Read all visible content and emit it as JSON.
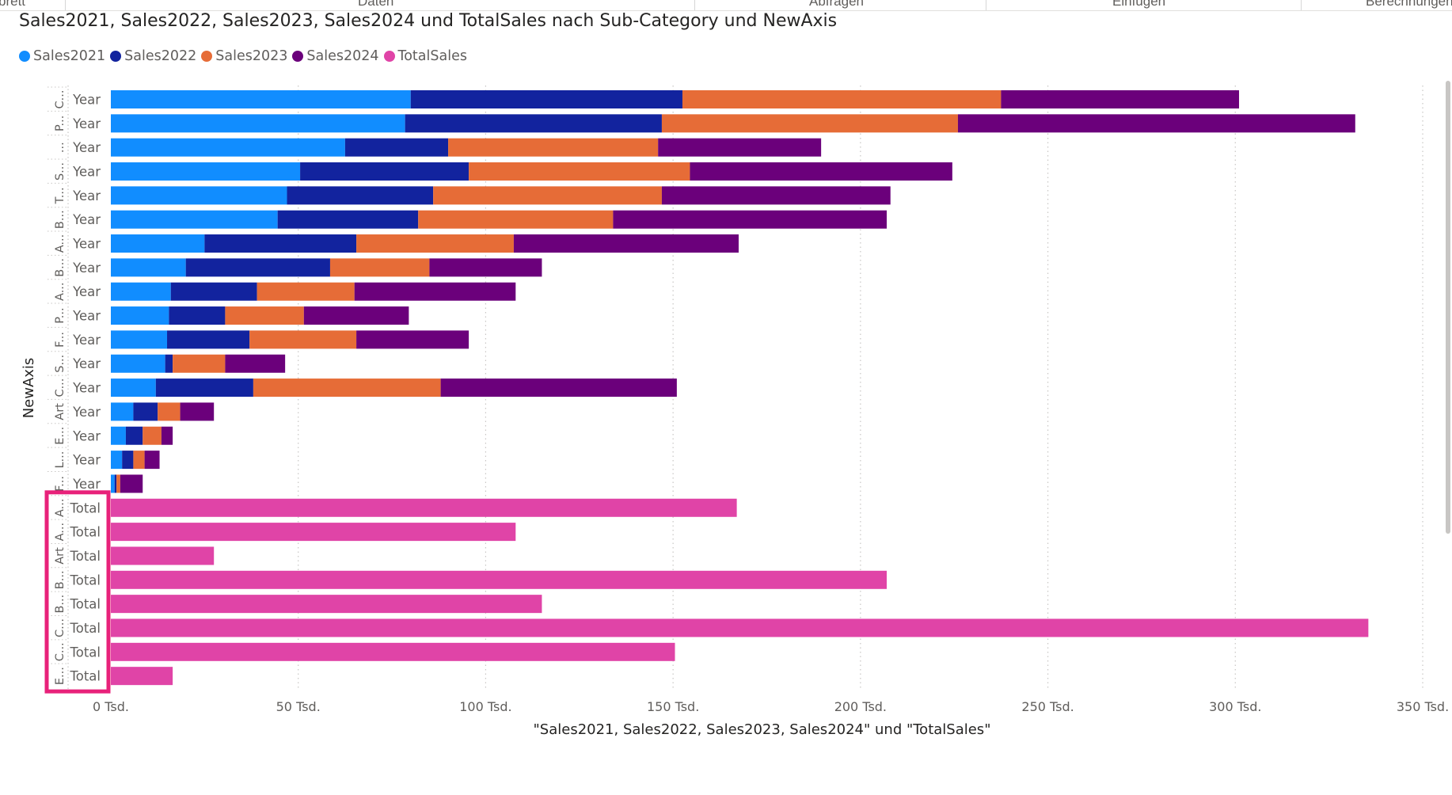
{
  "ribbon": {
    "items": [
      {
        "label": "brett"
      },
      {
        "label": "Daten"
      },
      {
        "label": "Abfragen"
      },
      {
        "label": "Einfügen"
      },
      {
        "label": "Berechnungen"
      }
    ]
  },
  "colors": {
    "Sales2021": "#118dff",
    "Sales2022": "#12239e",
    "Sales2023": "#e66c37",
    "Sales2024": "#6b007b",
    "TotalSales": "#e044a7",
    "highlight": "#e8217a"
  },
  "legend": {
    "items": [
      {
        "label": "Sales2021",
        "color": "#118dff"
      },
      {
        "label": "Sales2022",
        "color": "#12239e"
      },
      {
        "label": "Sales2023",
        "color": "#e66c37"
      },
      {
        "label": "Sales2024",
        "color": "#6b007b"
      },
      {
        "label": "TotalSales",
        "color": "#e044a7"
      }
    ]
  },
  "chart_data": {
    "type": "bar",
    "orientation": "horizontal",
    "stacked": true,
    "title": "Sales2021, Sales2022, Sales2023, Sales2024 und TotalSales nach Sub-Category und NewAxis",
    "xlabel": "\"Sales2021, Sales2022, Sales2023, Sales2024\" und \"TotalSales\"",
    "ylabel": "NewAxis",
    "xlim": [
      0,
      350
    ],
    "x_ticks": [
      "0 Tsd.",
      "50 Tsd.",
      "100 Tsd.",
      "150 Tsd.",
      "200 Tsd.",
      "250 Tsd.",
      "300 Tsd.",
      "350 Tsd."
    ],
    "grid": "vertical dotted",
    "legend_position": "top-left",
    "rows": [
      {
        "category": "C...",
        "axis": "Year",
        "values": [
          80,
          72.5,
          85,
          63.5,
          0
        ]
      },
      {
        "category": "P...",
        "axis": "Year",
        "values": [
          78.5,
          68.5,
          79,
          106,
          0
        ]
      },
      {
        "category": "...",
        "axis": "Year",
        "values": [
          62.5,
          27.5,
          56,
          43.5,
          0
        ]
      },
      {
        "category": "S...",
        "axis": "Year",
        "values": [
          50.5,
          45,
          59,
          70,
          0
        ]
      },
      {
        "category": "T...",
        "axis": "Year",
        "values": [
          47,
          39,
          61,
          61,
          0
        ]
      },
      {
        "category": "B...",
        "axis": "Year",
        "values": [
          44.5,
          37.5,
          52,
          73,
          0
        ]
      },
      {
        "category": "A...",
        "axis": "Year",
        "values": [
          25,
          40.5,
          42,
          60,
          0
        ]
      },
      {
        "category": "B...",
        "axis": "Year",
        "values": [
          20,
          38.5,
          26.5,
          30,
          0
        ]
      },
      {
        "category": "A...",
        "axis": "Year",
        "values": [
          16,
          23,
          26,
          43,
          0
        ]
      },
      {
        "category": "P...",
        "axis": "Year",
        "values": [
          15.5,
          15,
          21,
          28,
          0
        ]
      },
      {
        "category": "F...",
        "axis": "Year",
        "values": [
          15,
          22,
          28.5,
          30,
          0
        ]
      },
      {
        "category": "S...",
        "axis": "Year",
        "values": [
          14.5,
          2,
          14,
          16,
          0
        ]
      },
      {
        "category": "C...",
        "axis": "Year",
        "values": [
          12,
          26,
          50,
          63,
          0
        ]
      },
      {
        "category": "Art",
        "axis": "Year",
        "values": [
          6,
          6.5,
          6,
          9,
          0
        ]
      },
      {
        "category": "E...",
        "axis": "Year",
        "values": [
          4,
          4.5,
          5,
          3,
          0
        ]
      },
      {
        "category": "L...",
        "axis": "Year",
        "values": [
          3,
          3,
          3,
          4,
          0
        ]
      },
      {
        "category": "F...",
        "axis": "Year",
        "values": [
          1,
          0.5,
          1,
          6,
          0
        ]
      },
      {
        "category": "A...",
        "axis": "Total",
        "values": [
          0,
          0,
          0,
          0,
          167
        ]
      },
      {
        "category": "A...",
        "axis": "Total",
        "values": [
          0,
          0,
          0,
          0,
          108
        ]
      },
      {
        "category": "Art",
        "axis": "Total",
        "values": [
          0,
          0,
          0,
          0,
          27.5
        ]
      },
      {
        "category": "B...",
        "axis": "Total",
        "values": [
          0,
          0,
          0,
          0,
          207
        ]
      },
      {
        "category": "B...",
        "axis": "Total",
        "values": [
          0,
          0,
          0,
          0,
          115
        ]
      },
      {
        "category": "C...",
        "axis": "Total",
        "values": [
          0,
          0,
          0,
          0,
          335.5
        ]
      },
      {
        "category": "C...",
        "axis": "Total",
        "values": [
          0,
          0,
          0,
          0,
          150.5
        ]
      },
      {
        "category": "E...",
        "axis": "Total",
        "values": [
          0,
          0,
          0,
          0,
          16.5
        ]
      }
    ],
    "series": [
      {
        "name": "Sales2021"
      },
      {
        "name": "Sales2022"
      },
      {
        "name": "Sales2023"
      },
      {
        "name": "Sales2024"
      },
      {
        "name": "TotalSales"
      }
    ]
  }
}
